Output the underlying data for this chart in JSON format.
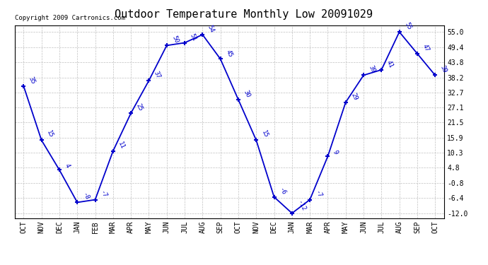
{
  "title": "Outdoor Temperature Monthly Low 20091029",
  "copyright": "Copyright 2009 Cartronics.com",
  "x_labels": [
    "OCT",
    "NOV",
    "DEC",
    "JAN",
    "FEB",
    "MAR",
    "APR",
    "MAY",
    "JUN",
    "JUL",
    "AUG",
    "SEP",
    "OCT",
    "NOV",
    "DEC",
    "JAN",
    "MAR",
    "APR",
    "MAY",
    "JUN",
    "JUL",
    "AUG",
    "SEP",
    "OCT"
  ],
  "y_values": [
    35,
    15,
    4,
    -8,
    -7,
    11,
    25,
    37,
    50,
    51,
    54,
    45,
    30,
    15,
    -6,
    -12,
    -7,
    9,
    29,
    39,
    41,
    55,
    47,
    39
  ],
  "y_ticks": [
    55.0,
    49.4,
    43.8,
    38.2,
    32.7,
    27.1,
    21.5,
    15.9,
    10.3,
    4.8,
    -0.8,
    -6.4,
    -12.0
  ],
  "line_color": "#0000cc",
  "marker_color": "#0000cc",
  "bg_color": "#ffffff",
  "grid_color": "#c0c0c0",
  "title_fontsize": 11,
  "copyright_fontsize": 6.5,
  "label_fontsize": 6.5,
  "tick_fontsize": 7,
  "ylim_min": -14.0,
  "ylim_max": 57.5
}
